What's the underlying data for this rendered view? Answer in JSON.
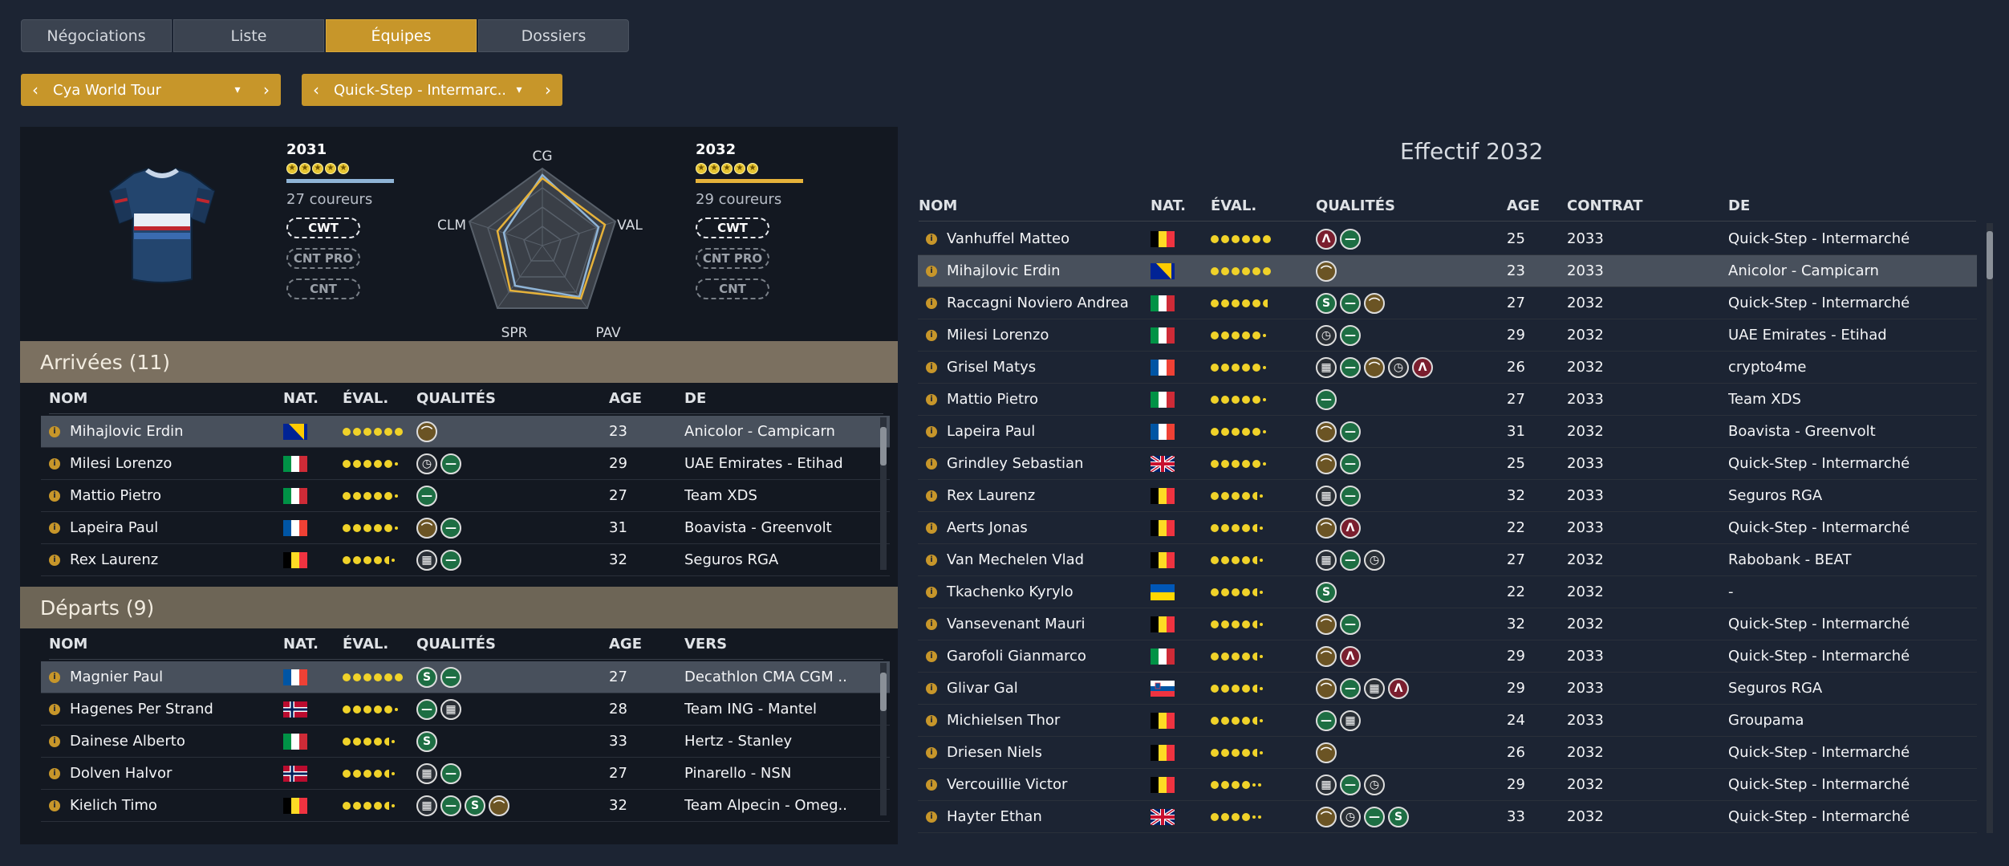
{
  "tabs": [
    {
      "label": "Négociations",
      "active": false
    },
    {
      "label": "Liste",
      "active": false
    },
    {
      "label": "Équipes",
      "active": true
    },
    {
      "label": "Dossiers",
      "active": false
    }
  ],
  "selectors": {
    "league": "Cya World Tour",
    "team": "Quick-Step - Intermarc.."
  },
  "summary": {
    "left": {
      "year": "2031",
      "riders": "27 coureurs",
      "bar_color": "#8fb4d6"
    },
    "right": {
      "year": "2032",
      "riders": "29 coureurs",
      "bar_color": "#e6b23a"
    },
    "badges": [
      "CWT",
      "CNT PRO",
      "CNT"
    ],
    "radar_labels": {
      "top": "CG",
      "right": "VAL",
      "bottom_right": "PAV",
      "bottom_left": "SPR",
      "left": "CLM"
    }
  },
  "arrivals": {
    "title": "Arrivées (11)",
    "headers": {
      "name": "NOM",
      "nat": "NAT.",
      "eval": "ÉVAL.",
      "quals": "QUALITÉS",
      "age": "AGE",
      "from": "DE"
    },
    "rows": [
      {
        "name": "Mihajlovic Erdin",
        "flag": "bih",
        "eval": "6",
        "quals": [
          "hill"
        ],
        "age": "23",
        "team": "Anicolor - Campicarn",
        "selected": true
      },
      {
        "name": "Milesi Lorenzo",
        "flag": "ita",
        "eval": "5",
        "quals": [
          "tt",
          "flat"
        ],
        "age": "29",
        "team": "UAE Emirates - Etihad"
      },
      {
        "name": "Mattio Pietro",
        "flag": "ita",
        "eval": "5",
        "quals": [
          "flat"
        ],
        "age": "27",
        "team": "Team XDS"
      },
      {
        "name": "Lapeira Paul",
        "flag": "fra",
        "eval": "5",
        "quals": [
          "hill",
          "flat"
        ],
        "age": "31",
        "team": "Boavista - Greenvolt"
      },
      {
        "name": "Rex Laurenz",
        "flag": "bel",
        "eval": "4.5",
        "quals": [
          "cobble",
          "flat"
        ],
        "age": "32",
        "team": "Seguros RGA"
      }
    ]
  },
  "departures": {
    "title": "Départs (9)",
    "headers": {
      "name": "NOM",
      "nat": "NAT.",
      "eval": "ÉVAL.",
      "quals": "QUALITÉS",
      "age": "AGE",
      "to": "VERS"
    },
    "rows": [
      {
        "name": "Magnier Paul",
        "flag": "fra",
        "eval": "6",
        "quals": [
          "sprint",
          "flat"
        ],
        "age": "27",
        "team": "Decathlon CMA CGM ..",
        "selected": true
      },
      {
        "name": "Hagenes Per Strand",
        "flag": "nor",
        "eval": "5",
        "quals": [
          "flat",
          "cobble"
        ],
        "age": "28",
        "team": "Team ING - Mantel"
      },
      {
        "name": "Dainese Alberto",
        "flag": "ita",
        "eval": "4.5",
        "quals": [
          "sprint"
        ],
        "age": "33",
        "team": "Hertz - Stanley"
      },
      {
        "name": "Dolven Halvor",
        "flag": "nor",
        "eval": "4.5",
        "quals": [
          "cobble",
          "flat"
        ],
        "age": "27",
        "team": "Pinarello - NSN"
      },
      {
        "name": "Kielich Timo",
        "flag": "bel",
        "eval": "4.5",
        "quals": [
          "cobble",
          "flat",
          "sprint",
          "hill"
        ],
        "age": "32",
        "team": "Team Alpecin - Omeg.."
      }
    ]
  },
  "roster": {
    "title": "Effectif 2032",
    "headers": {
      "name": "NOM",
      "nat": "NAT.",
      "eval": "ÉVAL.",
      "quals": "QUALITÉS",
      "age": "AGE",
      "contract": "CONTRAT",
      "from": "DE"
    },
    "rows": [
      {
        "name": "Vanhuffel Matteo",
        "flag": "bel",
        "eval": "6",
        "quals": [
          "mountain",
          "flat"
        ],
        "age": "25",
        "contract": "2033",
        "team": "Quick-Step - Intermarché"
      },
      {
        "name": "Mihajlovic Erdin",
        "flag": "bih",
        "eval": "6",
        "quals": [
          "hill"
        ],
        "age": "23",
        "contract": "2033",
        "team": "Anicolor - Campicarn",
        "selected": true
      },
      {
        "name": "Raccagni Noviero Andrea",
        "flag": "ita",
        "eval": "5.5",
        "quals": [
          "sprint",
          "flat",
          "hill"
        ],
        "age": "27",
        "contract": "2032",
        "team": "Quick-Step - Intermarché"
      },
      {
        "name": "Milesi Lorenzo",
        "flag": "ita",
        "eval": "5",
        "quals": [
          "tt",
          "flat"
        ],
        "age": "29",
        "contract": "2032",
        "team": "UAE Emirates - Etihad"
      },
      {
        "name": "Grisel Matys",
        "flag": "fra",
        "eval": "5",
        "quals": [
          "cobble",
          "flat",
          "hill",
          "tt",
          "mountain"
        ],
        "age": "26",
        "contract": "2032",
        "team": "crypto4me"
      },
      {
        "name": "Mattio Pietro",
        "flag": "ita",
        "eval": "5",
        "quals": [
          "flat"
        ],
        "age": "27",
        "contract": "2033",
        "team": "Team XDS"
      },
      {
        "name": "Lapeira Paul",
        "flag": "fra",
        "eval": "5",
        "quals": [
          "hill",
          "flat"
        ],
        "age": "31",
        "contract": "2032",
        "team": "Boavista - Greenvolt"
      },
      {
        "name": "Grindley Sebastian",
        "flag": "gbr",
        "eval": "5",
        "quals": [
          "hill",
          "flat"
        ],
        "age": "25",
        "contract": "2033",
        "team": "Quick-Step - Intermarché"
      },
      {
        "name": "Rex Laurenz",
        "flag": "bel",
        "eval": "4.5",
        "quals": [
          "cobble",
          "flat"
        ],
        "age": "32",
        "contract": "2033",
        "team": "Seguros RGA"
      },
      {
        "name": "Aerts Jonas",
        "flag": "bel",
        "eval": "4.5",
        "quals": [
          "hill",
          "mountain"
        ],
        "age": "22",
        "contract": "2033",
        "team": "Quick-Step - Intermarché"
      },
      {
        "name": "Van Mechelen Vlad",
        "flag": "bel",
        "eval": "4.5",
        "quals": [
          "cobble",
          "flat",
          "tt"
        ],
        "age": "27",
        "contract": "2032",
        "team": "Rabobank - BEAT"
      },
      {
        "name": "Tkachenko Kyrylo",
        "flag": "ukr",
        "eval": "4.5",
        "quals": [
          "sprint"
        ],
        "age": "22",
        "contract": "2032",
        "team": "-"
      },
      {
        "name": "Vansevenant Mauri",
        "flag": "bel",
        "eval": "4.5",
        "quals": [
          "hill",
          "flat"
        ],
        "age": "32",
        "contract": "2032",
        "team": "Quick-Step - Intermarché"
      },
      {
        "name": "Garofoli Gianmarco",
        "flag": "ita",
        "eval": "4.5",
        "quals": [
          "hill",
          "mountain"
        ],
        "age": "29",
        "contract": "2033",
        "team": "Quick-Step - Intermarché"
      },
      {
        "name": "Glivar Gal",
        "flag": "svn",
        "eval": "4.5",
        "quals": [
          "hill",
          "flat",
          "cobble",
          "mountain"
        ],
        "age": "29",
        "contract": "2033",
        "team": "Seguros RGA"
      },
      {
        "name": "Michielsen Thor",
        "flag": "bel",
        "eval": "4.5",
        "quals": [
          "flat",
          "cobble"
        ],
        "age": "24",
        "contract": "2033",
        "team": "Groupama"
      },
      {
        "name": "Driesen Niels",
        "flag": "bel",
        "eval": "4.5",
        "quals": [
          "hill"
        ],
        "age": "26",
        "contract": "2032",
        "team": "Quick-Step - Intermarché"
      },
      {
        "name": "Vercouillie Victor",
        "flag": "bel",
        "eval": "4",
        "quals": [
          "cobble",
          "flat",
          "tt"
        ],
        "age": "29",
        "contract": "2032",
        "team": "Quick-Step - Intermarché"
      },
      {
        "name": "Hayter Ethan",
        "flag": "gbr",
        "eval": "4",
        "quals": [
          "hill",
          "tt",
          "flat",
          "sprint"
        ],
        "age": "33",
        "contract": "2032",
        "team": "Quick-Step - Intermarché"
      }
    ]
  }
}
